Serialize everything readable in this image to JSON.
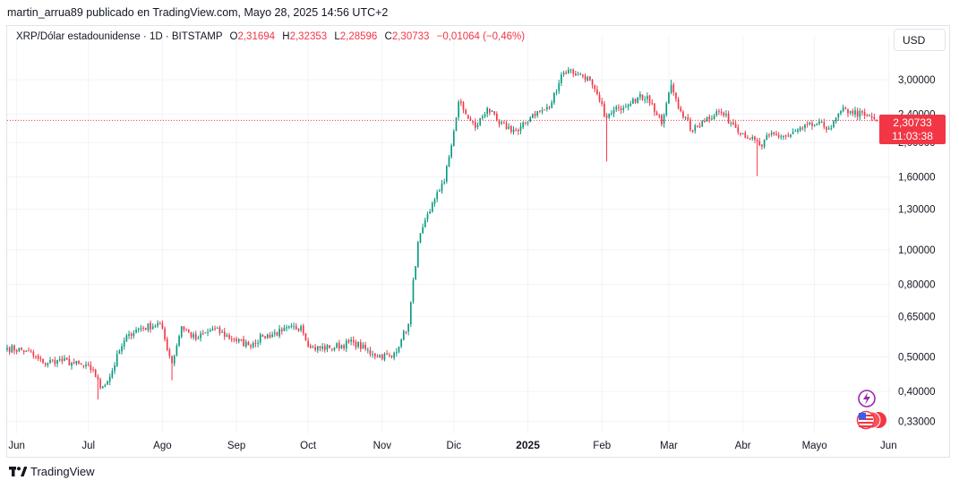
{
  "header": {
    "publisher_line": "martin_arrua89 publicado en TradingView.com, Mayo 28, 2025 14:56 UTC+2"
  },
  "legend": {
    "symbol": "XRP/Dólar estadounidense · 1D · BITSTAMP",
    "open_label": "O",
    "open_value": "2,31694",
    "high_label": "H",
    "high_value": "2,32353",
    "low_label": "L",
    "low_value": "2,28596",
    "close_label": "C",
    "close_value": "2,30733",
    "change": "−0,01064 (−0,46%)"
  },
  "currency_button": "USD",
  "price_tag": {
    "price": "2,30733",
    "countdown": "11:03:38"
  },
  "footer": {
    "brand": "TradingView"
  },
  "colors": {
    "up": "#089981",
    "down": "#f23645",
    "grid": "#f0f3fa",
    "text": "#131722"
  },
  "icons": [
    "lightning-icon",
    "us-flag-icon"
  ],
  "chart_data": {
    "type": "candlestick",
    "scale": "log",
    "y_ticks": [
      "3,00000",
      "2,40000",
      "2,00000",
      "1,60000",
      "1,30000",
      "1,00000",
      "0,80000",
      "0,65000",
      "0,50000",
      "0,40000",
      "0,33000"
    ],
    "y_tick_values": [
      3.0,
      2.4,
      2.0,
      1.6,
      1.3,
      1.0,
      0.8,
      0.65,
      0.5,
      0.4,
      0.33
    ],
    "x_ticks": [
      "Jun",
      "Jul",
      "Ago",
      "Sep",
      "Oct",
      "Nov",
      "Dic",
      "2025",
      "Feb",
      "Mar",
      "Abr",
      "Mayo",
      "Jun"
    ],
    "x_tick_dates": [
      "2024-06-01",
      "2024-07-01",
      "2024-08-01",
      "2024-09-01",
      "2024-10-01",
      "2024-11-01",
      "2024-12-01",
      "2025-01-01",
      "2025-02-01",
      "2025-03-01",
      "2025-04-01",
      "2025-05-01",
      "2025-06-01"
    ],
    "x_range": [
      "2024-05-28",
      "2025-06-02"
    ],
    "y_range": [
      0.305,
      3.55
    ],
    "last_close": 2.30733,
    "grid": true,
    "series": [
      {
        "name": "XRP/Dólar estadounidense",
        "close_points": [
          [
            "2024-05-28",
            0.53
          ],
          [
            "2024-06-05",
            0.52
          ],
          [
            "2024-06-12",
            0.48
          ],
          [
            "2024-06-18",
            0.49
          ],
          [
            "2024-06-25",
            0.48
          ],
          [
            "2024-07-03",
            0.46
          ],
          [
            "2024-07-06",
            0.41
          ],
          [
            "2024-07-10",
            0.44
          ],
          [
            "2024-07-14",
            0.52
          ],
          [
            "2024-07-18",
            0.58
          ],
          [
            "2024-07-22",
            0.6
          ],
          [
            "2024-07-31",
            0.62
          ],
          [
            "2024-08-05",
            0.48
          ],
          [
            "2024-08-09",
            0.61
          ],
          [
            "2024-08-15",
            0.56
          ],
          [
            "2024-08-22",
            0.6
          ],
          [
            "2024-08-31",
            0.56
          ],
          [
            "2024-09-06",
            0.54
          ],
          [
            "2024-09-12",
            0.57
          ],
          [
            "2024-09-20",
            0.59
          ],
          [
            "2024-09-28",
            0.61
          ],
          [
            "2024-10-02",
            0.53
          ],
          [
            "2024-10-10",
            0.53
          ],
          [
            "2024-10-20",
            0.55
          ],
          [
            "2024-10-28",
            0.51
          ],
          [
            "2024-11-05",
            0.5
          ],
          [
            "2024-11-09",
            0.56
          ],
          [
            "2024-11-12",
            0.62
          ],
          [
            "2024-11-16",
            1.05
          ],
          [
            "2024-11-21",
            1.28
          ],
          [
            "2024-11-24",
            1.45
          ],
          [
            "2024-11-27",
            1.55
          ],
          [
            "2024-12-02",
            2.35
          ],
          [
            "2024-12-03",
            2.6
          ],
          [
            "2024-12-06",
            2.4
          ],
          [
            "2024-12-10",
            2.2
          ],
          [
            "2024-12-15",
            2.5
          ],
          [
            "2024-12-20",
            2.25
          ],
          [
            "2024-12-28",
            2.15
          ],
          [
            "2025-01-03",
            2.4
          ],
          [
            "2025-01-10",
            2.5
          ],
          [
            "2025-01-15",
            3.1
          ],
          [
            "2025-01-18",
            3.2
          ],
          [
            "2025-01-22",
            3.1
          ],
          [
            "2025-01-26",
            3.05
          ],
          [
            "2025-02-03",
            2.35
          ],
          [
            "2025-02-08",
            2.5
          ],
          [
            "2025-02-14",
            2.65
          ],
          [
            "2025-02-20",
            2.7
          ],
          [
            "2025-02-26",
            2.25
          ],
          [
            "2025-03-02",
            2.9
          ],
          [
            "2025-03-06",
            2.45
          ],
          [
            "2025-03-11",
            2.15
          ],
          [
            "2025-03-15",
            2.3
          ],
          [
            "2025-03-22",
            2.45
          ],
          [
            "2025-03-28",
            2.25
          ],
          [
            "2025-04-04",
            2.05
          ],
          [
            "2025-04-09",
            1.95
          ],
          [
            "2025-04-12",
            2.1
          ],
          [
            "2025-04-20",
            2.08
          ],
          [
            "2025-04-26",
            2.2
          ],
          [
            "2025-05-02",
            2.25
          ],
          [
            "2025-05-08",
            2.2
          ],
          [
            "2025-05-12",
            2.45
          ],
          [
            "2025-05-16",
            2.45
          ],
          [
            "2025-05-22",
            2.38
          ],
          [
            "2025-05-27",
            2.32
          ]
        ],
        "spikes": [
          {
            "date": "2024-07-05",
            "low": 0.38
          },
          {
            "date": "2024-08-05",
            "low": 0.43
          },
          {
            "date": "2025-02-03",
            "low": 1.77
          },
          {
            "date": "2025-03-02",
            "high": 3.0
          },
          {
            "date": "2025-04-07",
            "low": 1.61
          }
        ],
        "last_candle": {
          "open": 2.31694,
          "high": 2.32353,
          "low": 2.28596,
          "close": 2.30733
        }
      }
    ]
  }
}
